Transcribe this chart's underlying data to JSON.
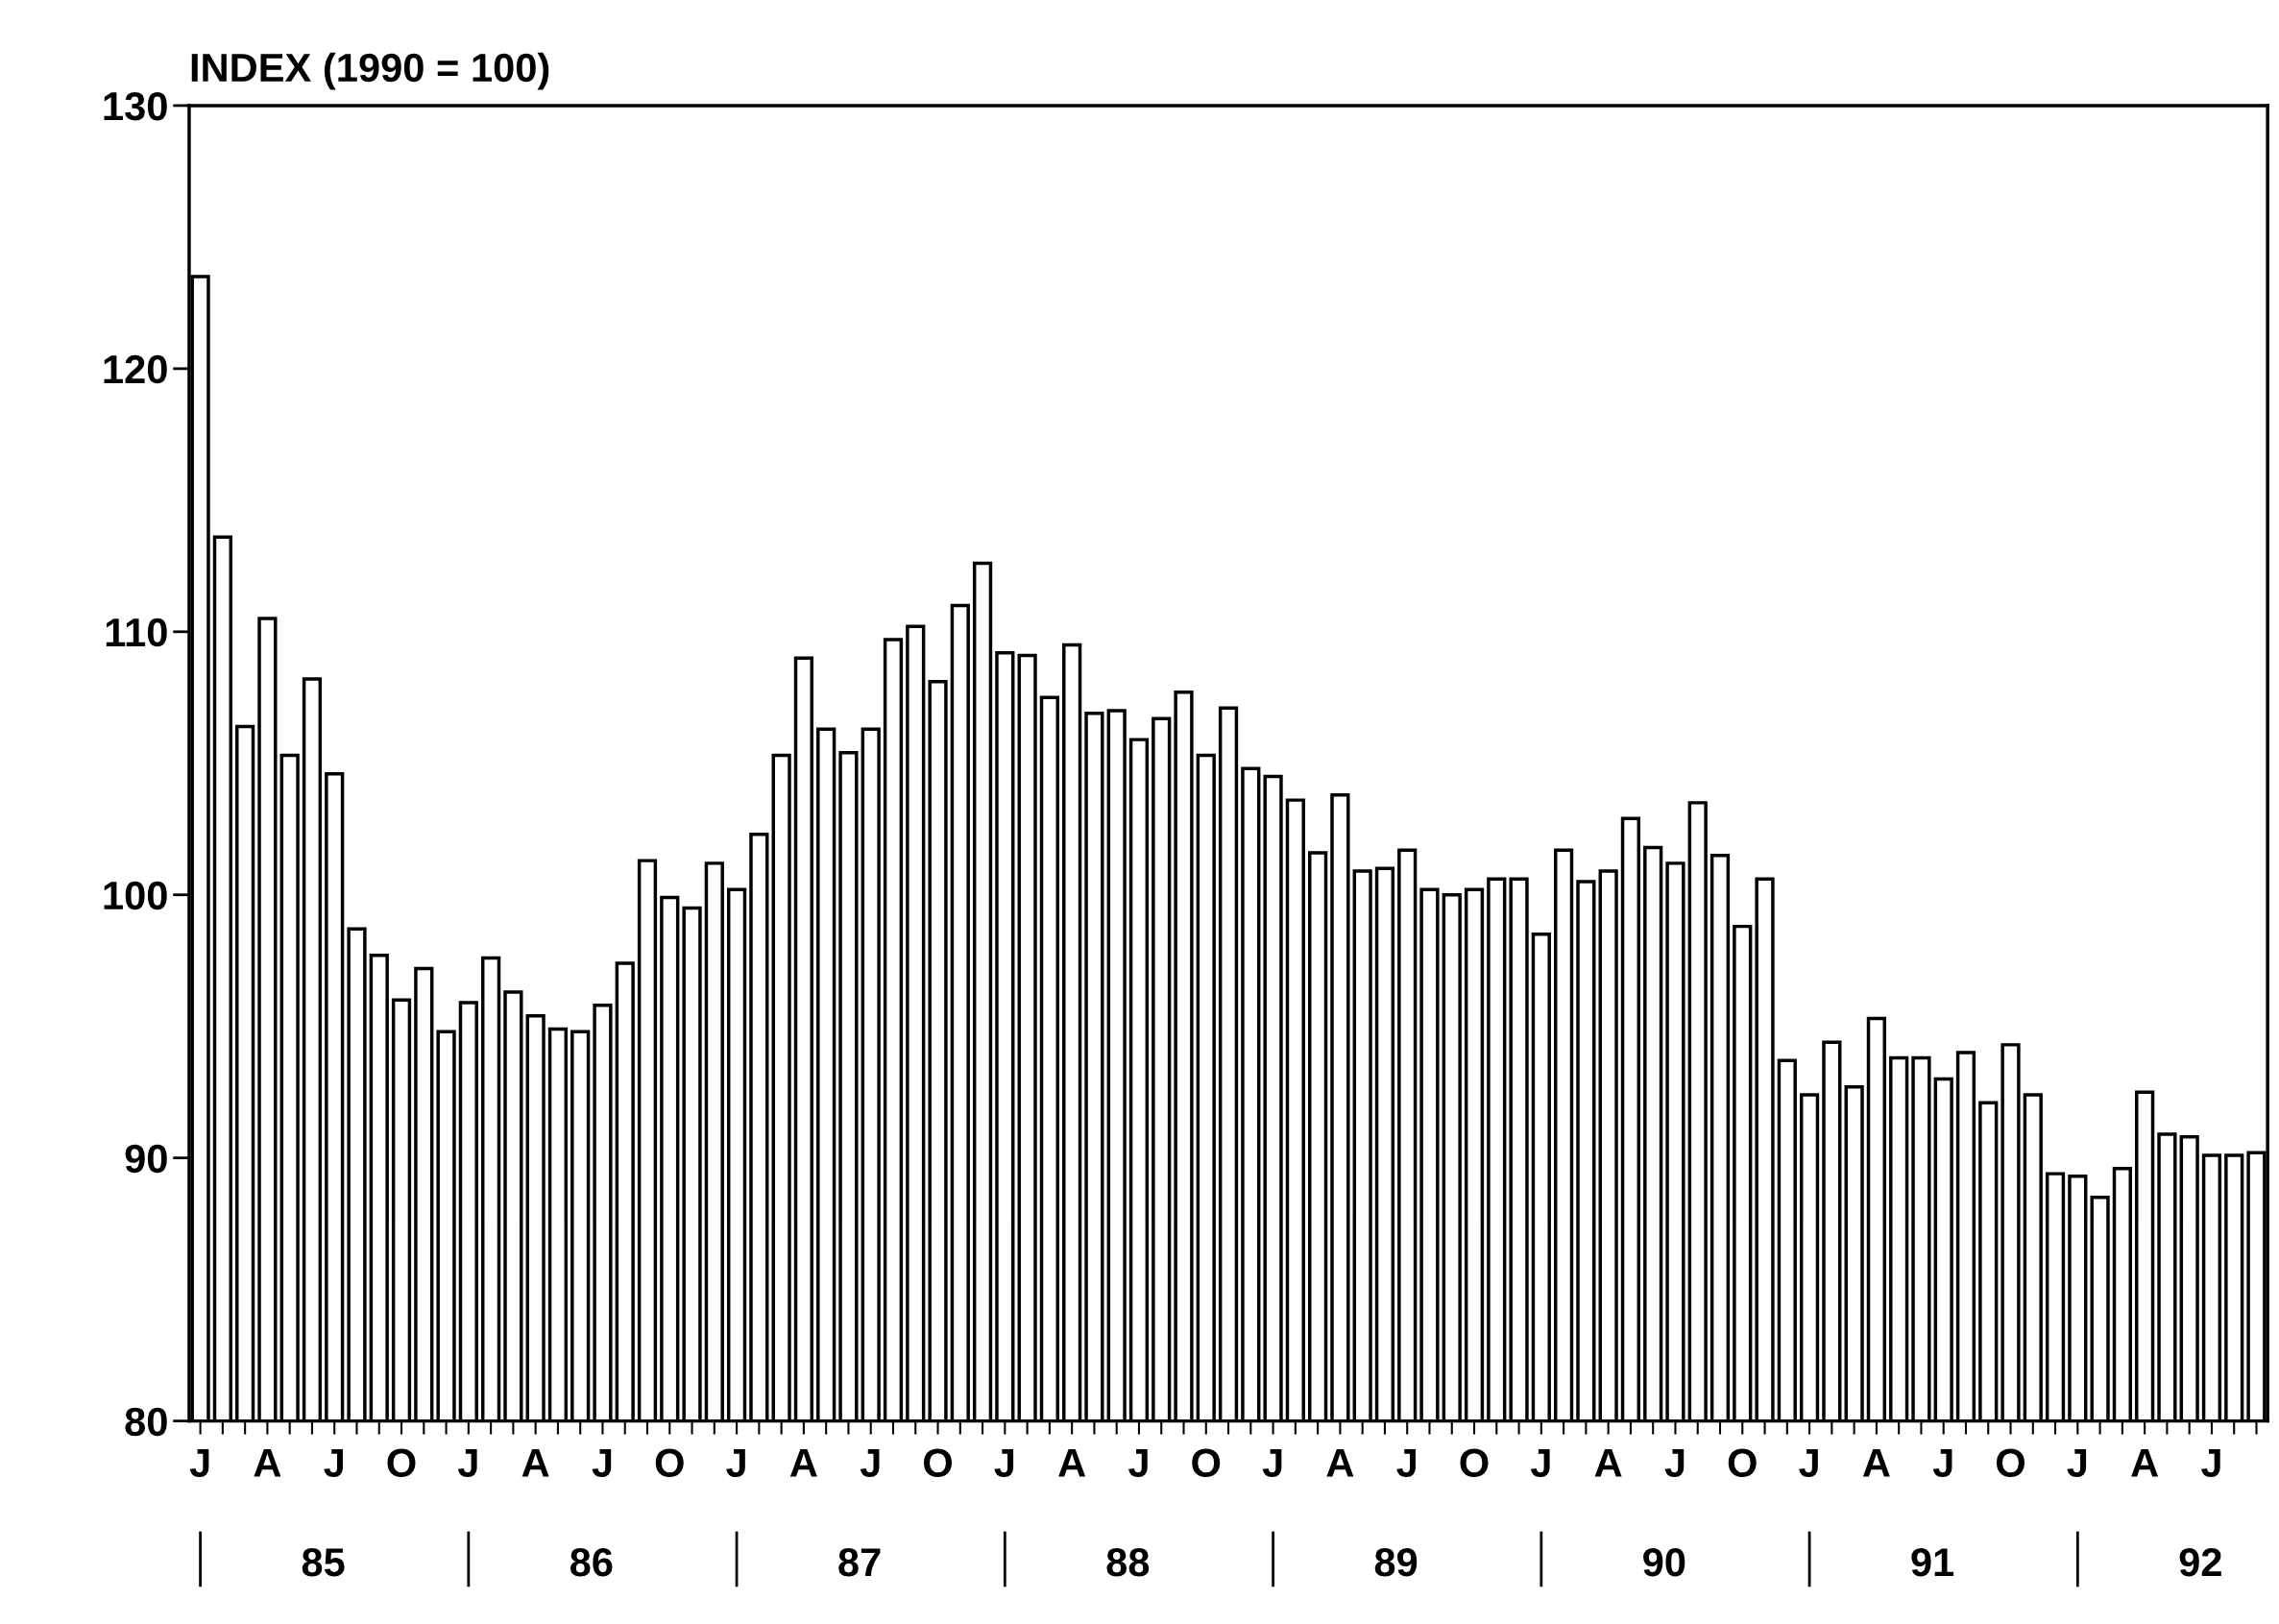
{
  "chart_data": {
    "type": "bar",
    "title": "INDEX (1990 = 100)",
    "categories": [
      "J",
      null,
      null,
      "A",
      null,
      null,
      "J",
      null,
      null,
      "O",
      null,
      null,
      "J",
      null,
      null,
      "A",
      null,
      null,
      "J",
      null,
      null,
      "O",
      null,
      null,
      "J",
      null,
      null,
      "A",
      null,
      null,
      "J",
      null,
      null,
      "O",
      null,
      null,
      "J",
      null,
      null,
      "A",
      null,
      null,
      "J",
      null,
      null,
      "O",
      null,
      null,
      "J",
      null,
      null,
      "A",
      null,
      null,
      "J",
      null,
      null,
      "O",
      null,
      null,
      "J",
      null,
      null,
      "A",
      null,
      null,
      "J",
      null,
      null,
      "O",
      null,
      null,
      "J",
      null,
      null,
      "A",
      null,
      null,
      "J",
      null,
      null,
      "O",
      null,
      null,
      "J",
      null,
      null,
      "A",
      null,
      null,
      "J",
      null,
      null
    ],
    "series": [
      {
        "color": "#ffffff",
        "values": [
          123.5,
          113.6,
          106.4,
          110.5,
          105.3,
          108.2,
          104.6,
          98.7,
          97.7,
          96.0,
          97.2,
          94.8,
          95.9,
          97.6,
          96.3,
          95.4,
          94.9,
          94.8,
          95.8,
          97.4,
          101.3,
          99.9,
          99.5,
          101.2,
          100.2,
          102.3,
          105.3,
          109.0,
          106.3,
          105.4,
          106.3,
          109.7,
          110.2,
          108.1,
          111.0,
          112.6,
          109.2,
          109.1,
          107.5,
          109.5,
          106.9,
          107.0,
          105.9,
          106.7,
          107.7,
          105.3,
          107.1,
          104.8,
          104.5,
          103.6,
          101.6,
          103.8,
          100.9,
          101.0,
          101.7,
          100.2,
          100.0,
          100.2,
          100.6,
          100.6,
          98.5,
          101.7,
          100.5,
          100.9,
          102.9,
          101.8,
          101.2,
          103.5,
          101.5,
          98.8,
          100.6,
          93.7,
          92.4,
          94.4,
          92.7,
          95.3,
          93.8,
          93.8,
          93.0,
          94.0,
          92.1,
          94.3,
          92.4,
          89.4,
          89.3,
          88.5,
          89.6,
          92.5,
          90.9,
          90.8,
          90.1,
          90.1,
          90.2
        ]
      }
    ],
    "ylim": [
      80,
      130
    ],
    "yticks": [
      80,
      90,
      100,
      110,
      120,
      130
    ],
    "annotations": [
      "85",
      "86",
      "87",
      "88",
      "89",
      "90",
      "91",
      "92"
    ]
  }
}
